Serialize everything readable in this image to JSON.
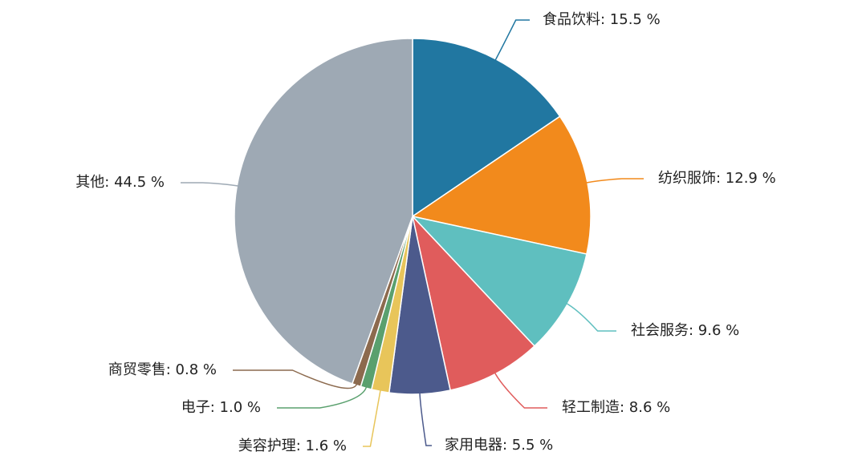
{
  "chart_data": {
    "type": "pie",
    "values": [
      15.5,
      12.9,
      9.6,
      8.6,
      5.5,
      1.6,
      1.0,
      0.8,
      44.5
    ],
    "value_labels": [
      "食品饮料: 15.5 %",
      "纺织服饰: 12.9 %",
      "社会服务: 9.6 %",
      "轻工制造: 8.6 %",
      "家用电器: 5.5 %",
      "美容护理: 1.6 %",
      "电子: 1.0 %",
      "商贸零售: 0.8 %",
      "其他: 44.5 %"
    ],
    "colors": [
      "#2177a1",
      "#f28a1c",
      "#5fbfbf",
      "#e05c5c",
      "#4c5a8c",
      "#e8c55a",
      "#5aa06e",
      "#8c6a4e",
      "#9ea9b4"
    ]
  }
}
